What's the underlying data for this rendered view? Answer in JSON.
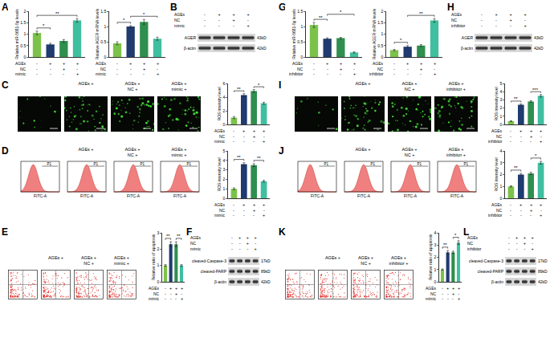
{
  "panel_labels": [
    "A",
    "B",
    "C",
    "D",
    "E",
    "F",
    "G",
    "H",
    "I",
    "J",
    "K",
    "L"
  ],
  "chart_data": [
    {
      "type": "bar",
      "ylabel": "Relative miR-5681-5p levels",
      "categories": [
        null,
        null,
        null,
        null
      ],
      "values": [
        1.05,
        0.55,
        0.7,
        1.6
      ],
      "errors": [
        0.08,
        0.05,
        0.06,
        0.08
      ],
      "colors": [
        "#7cc24a",
        "#1f3b70",
        "#2f8f4e",
        "#3fbf9f"
      ],
      "ylim": [
        0,
        2
      ],
      "yticks": [
        0,
        0.5,
        1,
        1.5,
        2
      ],
      "tick_labels": "y",
      "conditions": [
        {
          "name": "AGEs",
          "signs": [
            "-",
            "+",
            "+",
            "+"
          ]
        },
        {
          "name": "NC",
          "signs": [
            "-",
            "-",
            "+",
            "-"
          ]
        },
        {
          "name": "mimic",
          "signs": [
            "-",
            "-",
            "-",
            "+"
          ]
        }
      ],
      "significance": [
        {
          "from": 0,
          "to": 1,
          "label": "*"
        },
        {
          "from": 0,
          "to": 3,
          "label": "**"
        }
      ]
    },
    {
      "type": "bar",
      "ylabel": "Relative AGER mRNA levels",
      "categories": [
        null,
        null,
        null,
        null
      ],
      "values": [
        0.45,
        1.0,
        1.15,
        0.6
      ],
      "errors": [
        0.05,
        0.03,
        0.08,
        0.05
      ],
      "colors": [
        "#7cc24a",
        "#1f3b70",
        "#2f8f4e",
        "#3fbf9f"
      ],
      "ylim": [
        0,
        1.5
      ],
      "yticks": [
        0,
        0.5,
        1,
        1.5
      ],
      "tick_labels": "y",
      "conditions": [
        {
          "name": "AGEs",
          "signs": [
            "-",
            "+",
            "+",
            "+"
          ]
        },
        {
          "name": "NC",
          "signs": [
            "-",
            "-",
            "+",
            "-"
          ]
        },
        {
          "name": "mimic",
          "signs": [
            "-",
            "-",
            "-",
            "+"
          ]
        }
      ],
      "significance": [
        {
          "from": 0,
          "to": 1,
          "label": "*"
        },
        {
          "from": 1,
          "to": 3,
          "label": "*"
        }
      ]
    },
    {
      "type": "bar",
      "ylabel": "ROS intensity level",
      "categories": [
        null,
        null,
        null,
        null
      ],
      "values": [
        1.0,
        4.3,
        4.9,
        3.1
      ],
      "errors": [
        0.15,
        0.2,
        0.2,
        0.15
      ],
      "colors": [
        "#7cc24a",
        "#1f3b70",
        "#2f8f4e",
        "#3fbf9f"
      ],
      "ylim": [
        0,
        6
      ],
      "yticks": [
        0,
        2,
        4,
        6
      ],
      "tick_labels": "y",
      "conditions": [
        {
          "name": "AGEs",
          "signs": [
            "-",
            "+",
            "+",
            "+"
          ]
        },
        {
          "name": "NC",
          "signs": [
            "-",
            "-",
            "+",
            "-"
          ]
        },
        {
          "name": "mimic",
          "signs": [
            "-",
            "-",
            "-",
            "+"
          ]
        }
      ],
      "significance": [
        {
          "from": 0,
          "to": 1,
          "label": "**"
        },
        {
          "from": 2,
          "to": 3,
          "label": "*"
        }
      ]
    },
    {
      "type": "bar",
      "ylabel": "ROS intensity level",
      "categories": [
        null,
        null,
        null,
        null
      ],
      "values": [
        1.0,
        3.6,
        3.5,
        1.8
      ],
      "errors": [
        0.1,
        0.15,
        0.15,
        0.1
      ],
      "colors": [
        "#7cc24a",
        "#1f3b70",
        "#2f8f4e",
        "#3fbf9f"
      ],
      "ylim": [
        0,
        5
      ],
      "yticks": [
        0,
        1,
        2,
        3,
        4,
        5
      ],
      "tick_labels": "y",
      "conditions": [
        {
          "name": "AGEs",
          "signs": [
            "-",
            "+",
            "+",
            "+"
          ]
        },
        {
          "name": "NC",
          "signs": [
            "-",
            "-",
            "+",
            "-"
          ]
        },
        {
          "name": "mimic",
          "signs": [
            "-",
            "-",
            "-",
            "+"
          ]
        }
      ],
      "significance": [
        {
          "from": 0,
          "to": 1,
          "label": "**"
        },
        {
          "from": 2,
          "to": 3,
          "label": "**"
        }
      ]
    },
    {
      "type": "bar",
      "ylabel": "Relative ratio of apoptosis",
      "categories": [
        null,
        null,
        null,
        null
      ],
      "values": [
        1.0,
        2.3,
        2.3,
        1.0
      ],
      "errors": [
        0.05,
        0.15,
        0.15,
        0.05
      ],
      "colors": [
        "#7cc24a",
        "#1f3b70",
        "#2f8f4e",
        "#3fbf9f"
      ],
      "ylim": [
        0,
        3
      ],
      "yticks": [
        0,
        1,
        2,
        3
      ],
      "tick_labels": "y",
      "conditions": [
        {
          "name": "AGEs",
          "signs": [
            "-",
            "+",
            "+",
            "+"
          ]
        },
        {
          "name": "NC",
          "signs": [
            "-",
            "-",
            "+",
            "-"
          ]
        },
        {
          "name": "mimic",
          "signs": [
            "-",
            "-",
            "-",
            "+"
          ]
        }
      ],
      "significance": [
        {
          "from": 0,
          "to": 1,
          "label": "**"
        },
        {
          "from": 2,
          "to": 3,
          "label": "**"
        }
      ]
    },
    {
      "type": "bar",
      "ylabel": "Relative miR-5681-5p levels",
      "categories": [
        null,
        null,
        null,
        null
      ],
      "values": [
        1.05,
        0.6,
        0.62,
        0.15
      ],
      "errors": [
        0.08,
        0.03,
        0.02,
        0.02
      ],
      "colors": [
        "#7cc24a",
        "#1f3b70",
        "#2f8f4e",
        "#3fbf9f"
      ],
      "ylim": [
        0,
        1.5
      ],
      "yticks": [
        0,
        0.5,
        1,
        1.5
      ],
      "tick_labels": "y",
      "conditions": [
        {
          "name": "AGEs",
          "signs": [
            "-",
            "+",
            "+",
            "+"
          ]
        },
        {
          "name": "NC",
          "signs": [
            "-",
            "-",
            "+",
            "-"
          ]
        },
        {
          "name": "inhibitor",
          "signs": [
            "-",
            "-",
            "-",
            "+"
          ]
        }
      ],
      "significance": [
        {
          "from": 0,
          "to": 1,
          "label": "**"
        },
        {
          "from": 1,
          "to": 3,
          "label": "*"
        }
      ]
    },
    {
      "type": "bar",
      "ylabel": "Relative AGER mRNA levels",
      "categories": [
        null,
        null,
        null,
        null
      ],
      "values": [
        0.3,
        0.45,
        0.5,
        1.6
      ],
      "errors": [
        0.03,
        0.05,
        0.04,
        0.08
      ],
      "colors": [
        "#7cc24a",
        "#1f3b70",
        "#2f8f4e",
        "#3fbf9f"
      ],
      "ylim": [
        0,
        2
      ],
      "yticks": [
        0,
        0.5,
        1,
        1.5,
        2
      ],
      "tick_labels": "y",
      "conditions": [
        {
          "name": "AGEs",
          "signs": [
            "-",
            "+",
            "+",
            "+"
          ]
        },
        {
          "name": "NC",
          "signs": [
            "-",
            "-",
            "+",
            "-"
          ]
        },
        {
          "name": "inhibitor",
          "signs": [
            "-",
            "-",
            "-",
            "+"
          ]
        }
      ],
      "significance": [
        {
          "from": 0,
          "to": 1,
          "label": "*"
        },
        {
          "from": 1,
          "to": 3,
          "label": "**"
        }
      ]
    },
    {
      "type": "bar",
      "ylabel": "ROS intensity level",
      "categories": [
        null,
        null,
        null,
        null
      ],
      "values": [
        0.4,
        2.4,
        2.8,
        3.5
      ],
      "errors": [
        0.05,
        0.1,
        0.1,
        0.15
      ],
      "colors": [
        "#7cc24a",
        "#1f3b70",
        "#2f8f4e",
        "#3fbf9f"
      ],
      "ylim": [
        0,
        5
      ],
      "yticks": [
        0,
        1,
        2,
        3,
        4,
        5
      ],
      "tick_labels": "y",
      "conditions": [
        {
          "name": "AGEs",
          "signs": [
            "-",
            "+",
            "+",
            "+"
          ]
        },
        {
          "name": "NC",
          "signs": [
            "-",
            "-",
            "+",
            "-"
          ]
        },
        {
          "name": "inhibitor",
          "signs": [
            "-",
            "-",
            "-",
            "+"
          ]
        }
      ],
      "significance": [
        {
          "from": 0,
          "to": 1,
          "label": "**"
        },
        {
          "from": 2,
          "to": 3,
          "label": "***"
        }
      ]
    },
    {
      "type": "bar",
      "ylabel": "ROS intensity level",
      "categories": [
        null,
        null,
        null,
        null
      ],
      "values": [
        1.0,
        2.0,
        2.1,
        3.0
      ],
      "errors": [
        0.05,
        0.1,
        0.1,
        0.12
      ],
      "colors": [
        "#7cc24a",
        "#1f3b70",
        "#2f8f4e",
        "#3fbf9f"
      ],
      "ylim": [
        0,
        4
      ],
      "yticks": [
        0,
        1,
        2,
        3,
        4
      ],
      "tick_labels": "y",
      "conditions": [
        {
          "name": "AGEs",
          "signs": [
            "-",
            "+",
            "+",
            "+"
          ]
        },
        {
          "name": "NC",
          "signs": [
            "-",
            "-",
            "+",
            "-"
          ]
        },
        {
          "name": "inhibitor",
          "signs": [
            "-",
            "-",
            "-",
            "+"
          ]
        }
      ],
      "significance": [
        {
          "from": 0,
          "to": 1,
          "label": "**"
        },
        {
          "from": 2,
          "to": 3,
          "label": "*"
        }
      ]
    },
    {
      "type": "bar",
      "ylabel": "Relative ratio of apoptosis",
      "categories": [
        null,
        null,
        null,
        null
      ],
      "values": [
        1.0,
        2.4,
        2.4,
        3.2
      ],
      "errors": [
        0.05,
        0.15,
        0.1,
        0.15
      ],
      "colors": [
        "#7cc24a",
        "#1f3b70",
        "#2f8f4e",
        "#3fbf9f"
      ],
      "ylim": [
        0,
        4
      ],
      "yticks": [
        0,
        1,
        2,
        3,
        4
      ],
      "tick_labels": "y",
      "conditions": [
        {
          "name": "AGEs",
          "signs": [
            "-",
            "+",
            "+",
            "+"
          ]
        },
        {
          "name": "NC",
          "signs": [
            "-",
            "-",
            "+",
            "-"
          ]
        },
        {
          "name": "mimic",
          "signs": [
            "-",
            "-",
            "-",
            "+"
          ]
        }
      ],
      "significance": [
        {
          "from": 0,
          "to": 1,
          "label": "**"
        },
        {
          "from": 2,
          "to": 3,
          "label": "*"
        }
      ]
    }
  ],
  "blots": [
    {
      "conditions": [
        {
          "name": "AGEs",
          "signs": [
            "-",
            "+",
            "+",
            "+"
          ]
        },
        {
          "name": "NC",
          "signs": [
            "-",
            "-",
            "+",
            "-"
          ]
        },
        {
          "name": "mimic",
          "signs": [
            "-",
            "-",
            "-",
            "+"
          ]
        }
      ],
      "bands": [
        {
          "label": "AGER",
          "size": "43kD"
        },
        {
          "label": "β-actin",
          "size": "42kD"
        }
      ]
    },
    {
      "conditions": [
        {
          "name": "AGEs",
          "signs": [
            "-",
            "+",
            "+",
            "+"
          ]
        },
        {
          "name": "NC",
          "signs": [
            "-",
            "-",
            "+",
            "-"
          ]
        },
        {
          "name": "mimic",
          "signs": [
            "-",
            "-",
            "-",
            "+"
          ]
        }
      ],
      "bands": [
        {
          "label": "cleaved-Caspase-3",
          "size": "17kD"
        },
        {
          "label": "cleaved-PARP",
          "size": "89kD"
        },
        {
          "label": "β-actin",
          "size": "42kD"
        }
      ]
    },
    {
      "conditions": [
        {
          "name": "AGEs",
          "signs": [
            "-",
            "+",
            "+",
            "+"
          ]
        },
        {
          "name": "NC",
          "signs": [
            "-",
            "-",
            "+",
            "-"
          ]
        },
        {
          "name": "inhibitor",
          "signs": [
            "-",
            "-",
            "-",
            "+"
          ]
        }
      ],
      "bands": [
        {
          "label": "AGER",
          "size": "43kD"
        },
        {
          "label": "β-actin",
          "size": "42kD"
        }
      ]
    },
    {
      "conditions": [
        {
          "name": "AGEs",
          "signs": [
            "-",
            "+",
            "+",
            "+"
          ]
        },
        {
          "name": "NC",
          "signs": [
            "-",
            "-",
            "+",
            "-"
          ]
        },
        {
          "name": "inhibitor",
          "signs": [
            "-",
            "-",
            "-",
            "+"
          ]
        }
      ],
      "bands": [
        {
          "label": "cleaved-Caspase-3",
          "size": "17kD"
        },
        {
          "label": "cleaved-PARP",
          "size": "89kD"
        },
        {
          "label": "β-actin",
          "size": "42kD"
        }
      ]
    }
  ],
  "micrographs": [
    {
      "headers": [
        [],
        [
          [
            "AGEs",
            "+"
          ]
        ],
        [
          [
            "AGEs",
            "+"
          ],
          [
            "NC",
            "+"
          ]
        ],
        [
          [
            "AGEs",
            "+"
          ],
          [
            "mimic",
            "+"
          ]
        ]
      ]
    },
    {
      "headers": [
        [],
        [
          [
            "AGEs",
            "+"
          ]
        ],
        [
          [
            "AGEs",
            "+"
          ],
          [
            "NC",
            "+"
          ]
        ],
        [
          [
            "AGEs",
            "+"
          ],
          [
            "inhibitor",
            "+"
          ]
        ]
      ]
    }
  ],
  "flow_histograms": [
    {
      "headers": [
        [],
        [
          [
            "AGEs",
            "+"
          ]
        ],
        [
          [
            "AGEs",
            "+"
          ],
          [
            "NC",
            "+"
          ]
        ],
        [
          [
            "AGEs",
            "+"
          ],
          [
            "mimic",
            "+"
          ]
        ]
      ],
      "x_label": "FITC-A",
      "gate": "P1"
    },
    {
      "headers": [
        [],
        [
          [
            "AGEs",
            "+"
          ]
        ],
        [
          [
            "AGEs",
            "+"
          ],
          [
            "NC",
            "+"
          ]
        ],
        [
          [
            "AGEs",
            "+"
          ],
          [
            "inhibitor",
            "+"
          ]
        ]
      ],
      "x_label": "FITC-A",
      "gate": "P1"
    }
  ],
  "flow_dotplots": [
    {
      "headers": [
        [],
        [
          [
            "AGEs",
            "+"
          ]
        ],
        [
          [
            "AGEs",
            "+"
          ],
          [
            "NC",
            "+"
          ]
        ],
        [
          [
            "AGEs",
            "+"
          ],
          [
            "mimic",
            "+"
          ]
        ]
      ]
    },
    {
      "headers": [
        [],
        [
          [
            "AGEs",
            "+"
          ]
        ],
        [
          [
            "AGEs",
            "+"
          ],
          [
            "NC",
            "+"
          ]
        ],
        [
          [
            "AGEs",
            "+"
          ],
          [
            "inhibitor",
            "+"
          ]
        ]
      ]
    }
  ]
}
